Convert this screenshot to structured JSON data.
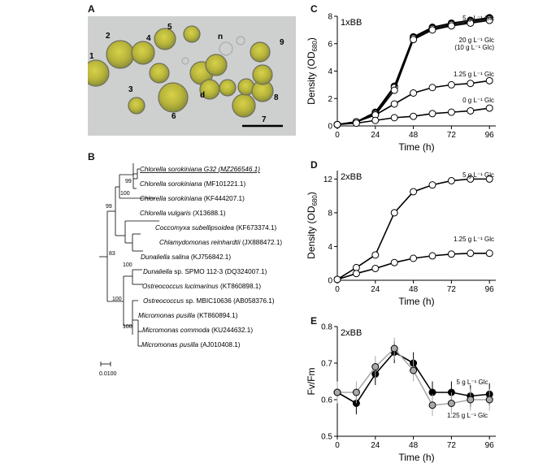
{
  "panels": {
    "A": "A",
    "B": "B",
    "C": "C",
    "D": "D",
    "E": "E"
  },
  "micrograph": {
    "cell_labels": [
      "1",
      "2",
      "3",
      "4",
      "5",
      "6",
      "7",
      "8",
      "9"
    ],
    "annotations": [
      "n",
      "d"
    ]
  },
  "tree": {
    "leaves": [
      {
        "genus": "Chlorella sorokiniana",
        "strain": "G32",
        "accession": "(MZ266546.1)",
        "underlined": true
      },
      {
        "genus": "Chlorella sorokiniana",
        "strain": "",
        "accession": "(MF101221.1)",
        "underlined": false
      },
      {
        "genus": "Chlorella sorokiniana",
        "strain": "",
        "accession": "(KF444207.1)",
        "underlined": false
      },
      {
        "genus": "Chlorella vulgaris",
        "strain": "",
        "accession": "(X13688.1)",
        "underlined": false
      },
      {
        "genus": "Coccomyxa subellipsoidea",
        "strain": "",
        "accession": "(KF673374.1)",
        "underlined": false
      },
      {
        "genus": "Chlamydomonas reinhardtii",
        "strain": "",
        "accession": "(JX888472.1)",
        "underlined": false
      },
      {
        "genus": "Dunaliella salina",
        "strain": "",
        "accession": "(KJ756842.1)",
        "underlined": false
      },
      {
        "genus": "Dunaliella",
        "strain": "sp. SPMO 112-3",
        "accession": "(DQ324007.1)",
        "underlined": false
      },
      {
        "genus": "Ostreococcus lucimarinus",
        "strain": "",
        "accession": "(KT860898.1)",
        "underlined": false
      },
      {
        "genus": "Ostreococcus",
        "strain": "sp. MBIC10636",
        "accession": "(AB058376.1)",
        "underlined": false
      },
      {
        "genus": "Micromonas pusilla",
        "strain": "",
        "accession": "(KT860894.1)",
        "underlined": false
      },
      {
        "genus": "Micromonas commoda",
        "strain": "",
        "accession": "(KU244632.1)",
        "underlined": false
      },
      {
        "genus": "Micromonas pusilla",
        "strain": "",
        "accession": "(AJ010408.1)",
        "underlined": false
      }
    ],
    "bootstrap": [
      "99",
      "100",
      "99",
      "83",
      "100",
      "100",
      "100"
    ],
    "scale_label": "0.0100"
  },
  "chart_data": [
    {
      "id": "C",
      "type": "line",
      "condition_label": "1xBB",
      "xlabel": "Time (h)",
      "ylabel": "Density (OD",
      "ylabel_sub": "680",
      "ylabel_close": ")",
      "xlim": [
        0,
        100
      ],
      "ylim": [
        0,
        8
      ],
      "xticks": [
        0,
        24,
        48,
        72,
        96
      ],
      "yticks": [
        0,
        2,
        4,
        6,
        8
      ],
      "x": [
        0,
        12,
        24,
        36,
        48,
        60,
        72,
        84,
        96
      ],
      "series": [
        {
          "label": "5 g L⁻¹ Glc",
          "fill": "#000000",
          "values": [
            0.1,
            0.3,
            1.0,
            2.9,
            6.5,
            7.2,
            7.5,
            7.7,
            7.9
          ]
        },
        {
          "label": "20 g L⁻¹ Glc",
          "fill": "#ffffff",
          "values": [
            0.1,
            0.3,
            0.9,
            2.8,
            6.4,
            7.1,
            7.4,
            7.6,
            7.8
          ]
        },
        {
          "label": "(10 g L⁻¹ Glc)",
          "fill": "#ffffff",
          "values": [
            0.1,
            0.3,
            0.8,
            2.6,
            6.3,
            7.0,
            7.3,
            7.5,
            7.7
          ]
        },
        {
          "label": "1.25 g L⁻¹ Glc",
          "fill": "#ffffff",
          "values": [
            0.1,
            0.3,
            0.8,
            1.6,
            2.4,
            2.8,
            3.0,
            3.1,
            3.3
          ]
        },
        {
          "label": "0 g L⁻¹ Glc",
          "fill": "#ffffff",
          "values": [
            0.1,
            0.2,
            0.4,
            0.6,
            0.7,
            0.9,
            1.0,
            1.1,
            1.3
          ]
        }
      ]
    },
    {
      "id": "D",
      "type": "line",
      "condition_label": "2xBB",
      "xlabel": "Time (h)",
      "ylabel": "Density (OD",
      "ylabel_sub": "680",
      "ylabel_close": ")",
      "xlim": [
        0,
        100
      ],
      "ylim": [
        0,
        13
      ],
      "xticks": [
        0,
        24,
        48,
        72,
        96
      ],
      "yticks": [
        0,
        4,
        8,
        12
      ],
      "x": [
        0,
        12,
        24,
        36,
        48,
        60,
        72,
        84,
        96
      ],
      "series": [
        {
          "label": "5 g L⁻¹ Glc",
          "fill": "#ffffff",
          "values": [
            0.1,
            1.5,
            3.0,
            8.0,
            10.5,
            11.3,
            11.8,
            12.0,
            12.0
          ]
        },
        {
          "label": "1.25 g L⁻¹ Glc",
          "fill": "#ffffff",
          "values": [
            0.1,
            0.8,
            1.4,
            2.1,
            2.6,
            2.9,
            3.1,
            3.2,
            3.2
          ]
        }
      ]
    },
    {
      "id": "E",
      "type": "line",
      "condition_label": "2xBB",
      "xlabel": "Time (h)",
      "ylabel": "Fv/Fm",
      "xlim": [
        0,
        100
      ],
      "ylim": [
        0.5,
        0.8
      ],
      "xticks": [
        0,
        24,
        48,
        72,
        96
      ],
      "yticks": [
        0.5,
        0.6,
        0.7,
        0.8
      ],
      "x": [
        0,
        12,
        24,
        36,
        48,
        60,
        72,
        84,
        96
      ],
      "series": [
        {
          "label": "5 g L⁻¹ Glc",
          "fill": "#000000",
          "stroke": "#000000",
          "values": [
            0.62,
            0.59,
            0.67,
            0.73,
            0.7,
            0.62,
            0.62,
            0.61,
            0.615
          ],
          "err": [
            0.03,
            0.03,
            0.03,
            0.03,
            0.03,
            0.03,
            0.03,
            0.03,
            0.03
          ]
        },
        {
          "label": "1.25 g L⁻¹ Glc",
          "fill": "#a9a9a9",
          "stroke": "#a9a9a9",
          "values": [
            0.62,
            0.62,
            0.69,
            0.74,
            0.68,
            0.585,
            0.59,
            0.6,
            0.6
          ],
          "err": [
            0.03,
            0.03,
            0.03,
            0.03,
            0.03,
            0.03,
            0.03,
            0.03,
            0.03
          ]
        }
      ]
    }
  ]
}
